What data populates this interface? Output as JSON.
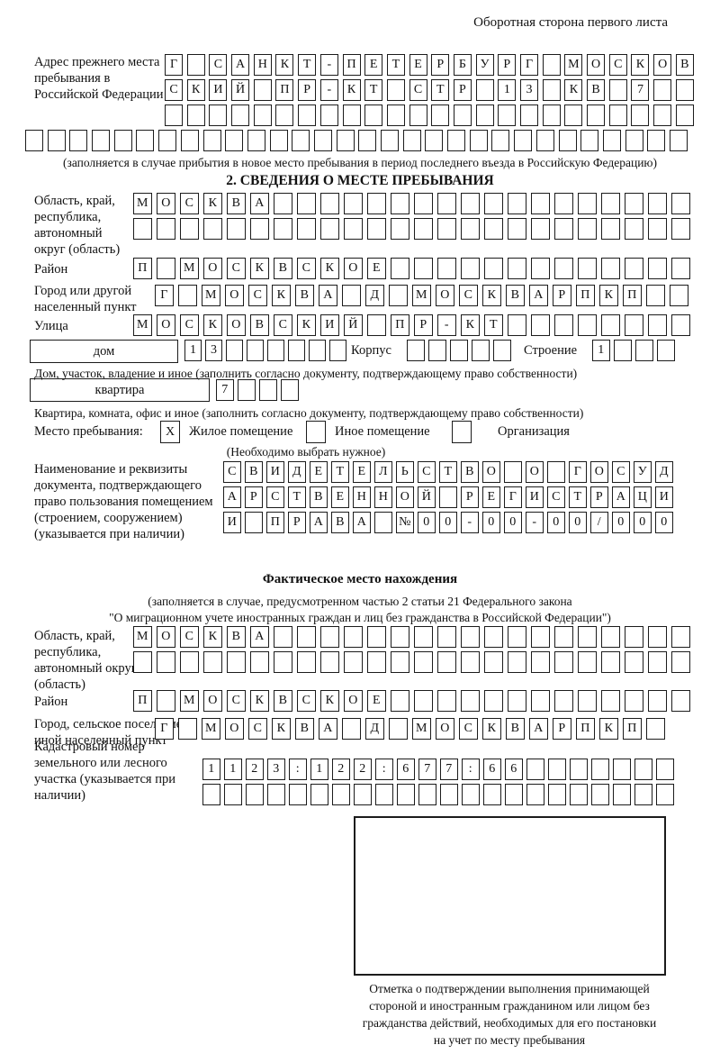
{
  "page_header": "Оборотная сторона первого листа",
  "prev_address": {
    "label": "Адрес прежнего места пребывания в Российской Федерации",
    "rows": [
      "Г САНКТ-ПЕТЕРБУРГ МОСКОВ",
      "СКИЙ ПР-КТ СТР 13 КВ 7  ",
      "                        "
    ],
    "overflow_row": "                              ",
    "caption": "(заполняется в случае прибытия в новое место пребывания в период последнего въезда в Российскую Федерацию)"
  },
  "section2": {
    "title": "2. СВЕДЕНИЯ О МЕСТЕ ПРЕБЫВАНИЯ",
    "region": {
      "label": "Область, край, республика, автономный округ (область)",
      "row1": "МОСКВА                  ",
      "row2": "                        "
    },
    "district": {
      "label": "Район",
      "row": "П МОСКВСКОЕ             "
    },
    "city": {
      "label": "Город или другой населенный пункт",
      "row": "Г МОСКВА Д МОСКВАРПКП  "
    },
    "street": {
      "label": "Улица",
      "row": "МОСКОВСКИЙ ПР-КТ        "
    },
    "house": {
      "label": "дом",
      "boxes": "13      ",
      "korpus_label": "Корпус",
      "korpus_boxes": "     ",
      "stroenie_label": "Строение",
      "stroenie_boxes": "1   ",
      "caption": "Дом, участок, владение и иное (заполнить согласно документу, подтверждающему право собственности)"
    },
    "apartment": {
      "label": "квартира",
      "boxes": "7   ",
      "caption": "Квартира, комната, офис и иное (заполнить согласно документу, подтверждающему право собственности)"
    },
    "stay_type": {
      "label": "Место пребывания:",
      "options": [
        {
          "mark": "X",
          "label": "Жилое помещение"
        },
        {
          "mark": "",
          "label": "Иное помещение"
        },
        {
          "mark": "",
          "label": "Организация"
        }
      ],
      "caption": "(Необходимо выбрать нужное)"
    },
    "document": {
      "label": "Наименование и реквизиты документа, подтверждающего право пользования помещением (строением, сооружением) (указывается при наличии)",
      "row1": "СВИДЕТЕЛЬСТВО О ГОСУД",
      "row2": "АРСТВЕННОЙ РЕГИСТРАЦИ",
      "row3": "И ПРАВА №00-00-00/000"
    }
  },
  "actual_location": {
    "title": "Фактическое место нахождения",
    "caption_line1": "(заполняется в случае, предусмотренном частью 2 статьи 21 Федерального закона",
    "caption_line2": "\"О миграционном учете иностранных граждан и лиц без гражданства в Российской Федерации\")",
    "region": {
      "label": "Область, край, республика, автономный округ (область)",
      "row1": "МОСКВА                  ",
      "row2": "                        "
    },
    "district": {
      "label": "Район",
      "row": "П МОСКВСКОЕ             "
    },
    "city": {
      "label": "Город, сельское поселение, иной населенный пункт",
      "row": "Г МОСКВА Д МОСКВАРПКП "
    },
    "cadastral": {
      "label": "Кадастровый номер земельного или лесного участка (указывается при наличии)",
      "row1": "1123:122:677:66       ",
      "row2": "                      "
    },
    "stamp_caption_lines": [
      "Отметка о подтверждении выполнения принимающей",
      "стороной и иностранным гражданином или лицом без",
      "гражданства действий, необходимых для его постановки",
      "на учет по месту пребывания"
    ]
  }
}
